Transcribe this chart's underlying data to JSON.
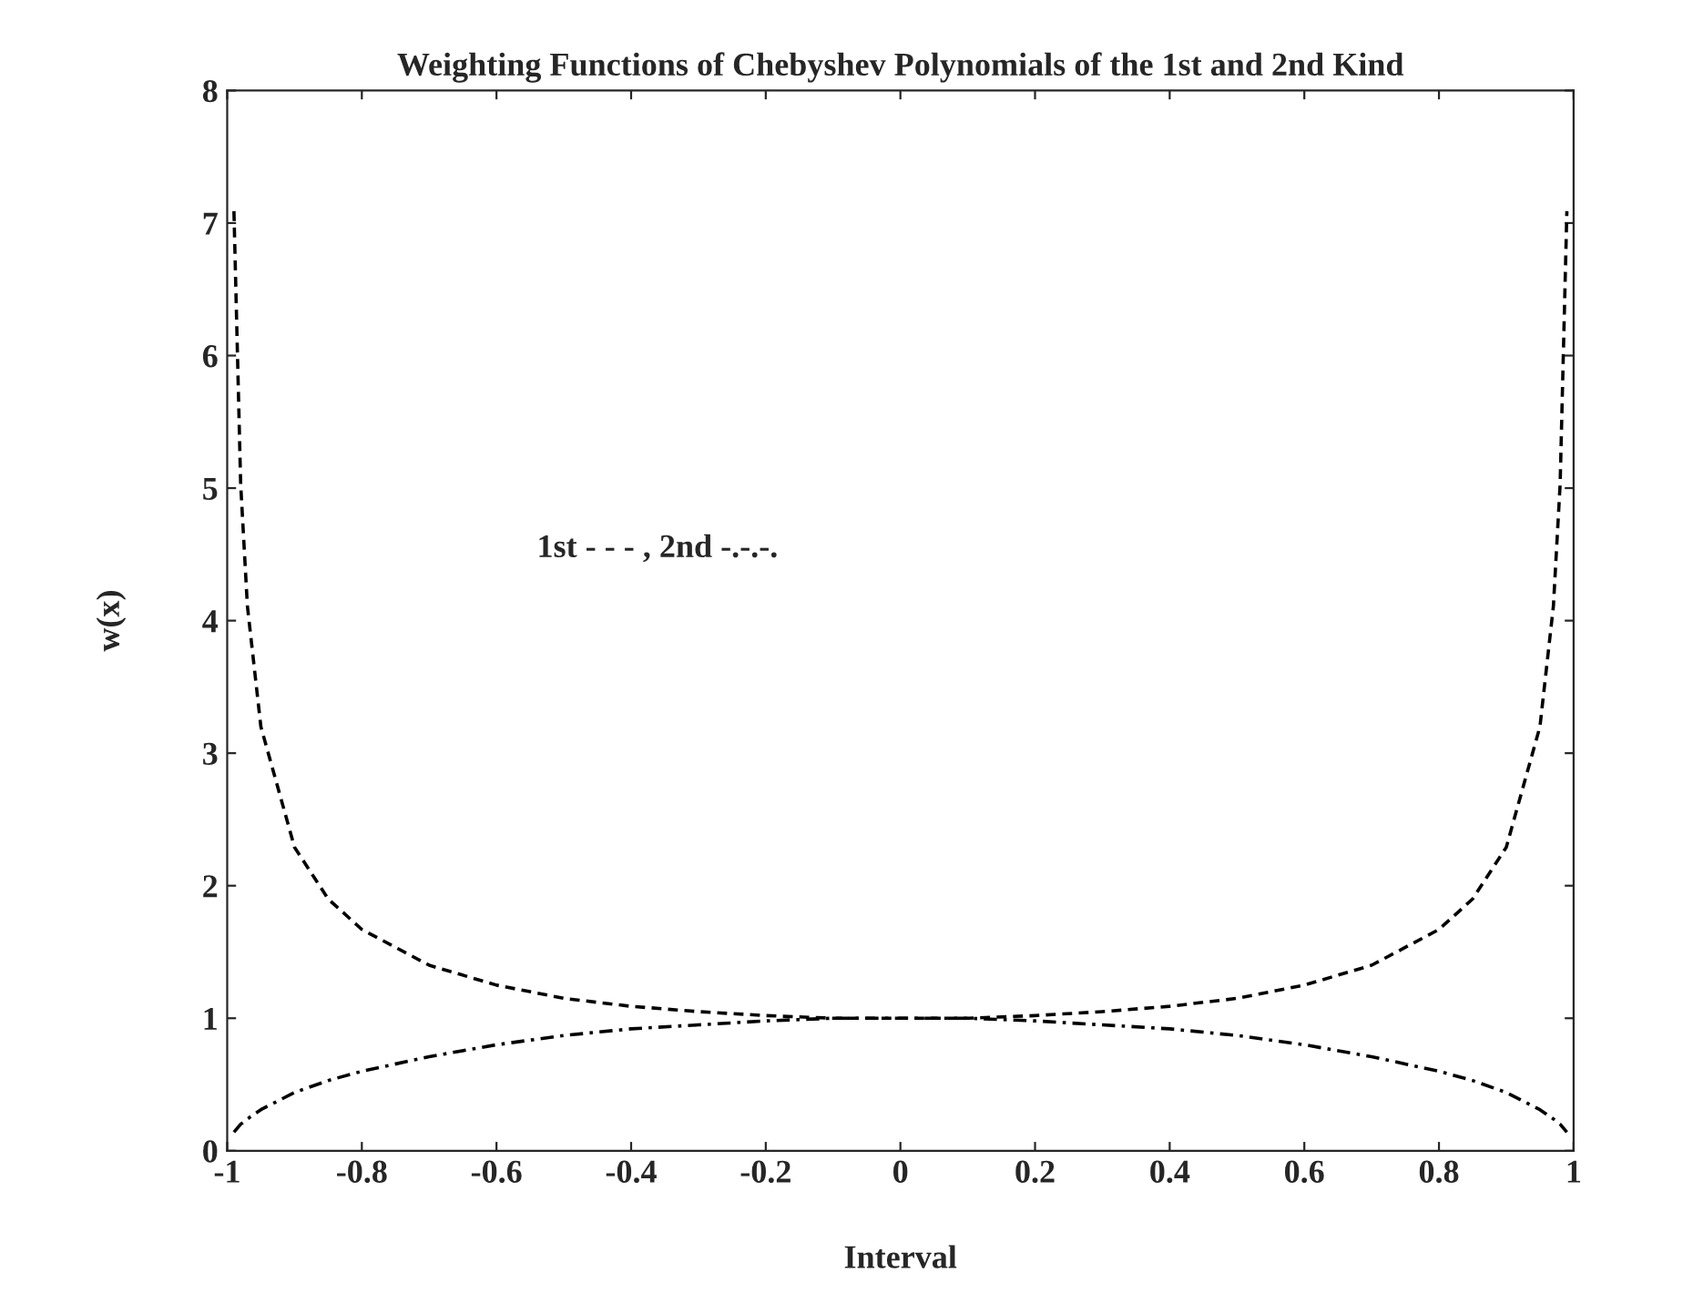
{
  "chart_data": {
    "type": "line",
    "title": "Weighting Functions of Chebyshev Polynomials of the 1st and 2nd Kind",
    "xlabel": "Interval",
    "ylabel": "w(x)",
    "annotations": [
      "1st - - - , 2nd -.-.-."
    ],
    "x": [
      -0.99,
      -0.98,
      -0.97,
      -0.95,
      -0.9,
      -0.85,
      -0.8,
      -0.7,
      -0.6,
      -0.5,
      -0.4,
      -0.3,
      -0.2,
      -0.1,
      0,
      0.1,
      0.2,
      0.3,
      0.4,
      0.5,
      0.6,
      0.7,
      0.8,
      0.85,
      0.9,
      0.95,
      0.97,
      0.98,
      0.99
    ],
    "series": [
      {
        "color": "#000000",
        "line_style": "dashed",
        "values": [
          7.09,
          5.03,
          4.11,
          3.2,
          2.29,
          1.9,
          1.67,
          1.4,
          1.25,
          1.15,
          1.09,
          1.05,
          1.02,
          1.0,
          1,
          1.0,
          1.02,
          1.05,
          1.09,
          1.15,
          1.25,
          1.4,
          1.67,
          1.9,
          2.29,
          3.2,
          4.11,
          5.03,
          7.09
        ]
      },
      {
        "color": "#000000",
        "line_style": "dashdot",
        "values": [
          0.14,
          0.2,
          0.24,
          0.31,
          0.44,
          0.53,
          0.6,
          0.71,
          0.8,
          0.87,
          0.92,
          0.95,
          0.98,
          1.0,
          1,
          1.0,
          0.98,
          0.95,
          0.92,
          0.87,
          0.8,
          0.71,
          0.6,
          0.53,
          0.44,
          0.31,
          0.24,
          0.2,
          0.14
        ]
      }
    ],
    "xlim": [
      -1,
      1
    ],
    "xticks": [
      -1,
      -0.8,
      -0.6,
      -0.4,
      -0.2,
      0,
      0.2,
      0.4,
      0.6,
      0.8,
      1
    ],
    "ylim": [
      0,
      8
    ],
    "yticks": [
      0,
      1,
      2,
      3,
      4,
      5,
      6,
      7,
      8
    ],
    "grid": false,
    "legend": false
  }
}
